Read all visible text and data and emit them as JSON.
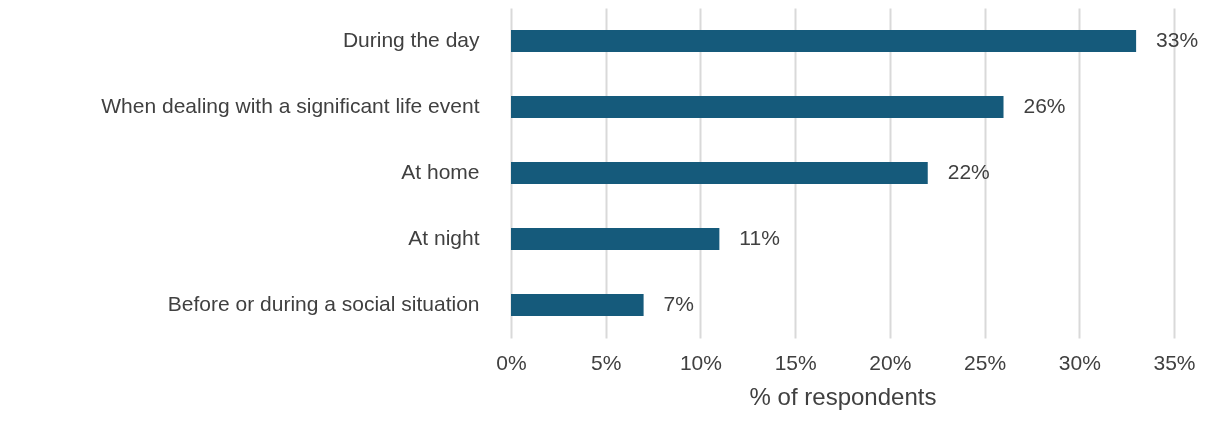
{
  "chart_data": {
    "type": "bar",
    "orientation": "horizontal",
    "xlabel": "% of respondents",
    "categories": [
      "During the day",
      "When dealing with a significant life event",
      "At home",
      "At night",
      "Before or during a social situation"
    ],
    "values": [
      33,
      26,
      22,
      11,
      7
    ],
    "value_labels": [
      "33%",
      "26%",
      "22%",
      "11%",
      "7%"
    ],
    "color": "#155a7b",
    "xlim": [
      0,
      35
    ],
    "xticks": [
      {
        "value": 0,
        "label": "0%"
      },
      {
        "value": 5,
        "label": "5%"
      },
      {
        "value": 10,
        "label": "10%"
      },
      {
        "value": 15,
        "label": "15%"
      },
      {
        "value": 20,
        "label": "20%"
      },
      {
        "value": 25,
        "label": "25%"
      },
      {
        "value": 30,
        "label": "30%"
      },
      {
        "value": 35,
        "label": "35%"
      }
    ],
    "grid": "x"
  }
}
